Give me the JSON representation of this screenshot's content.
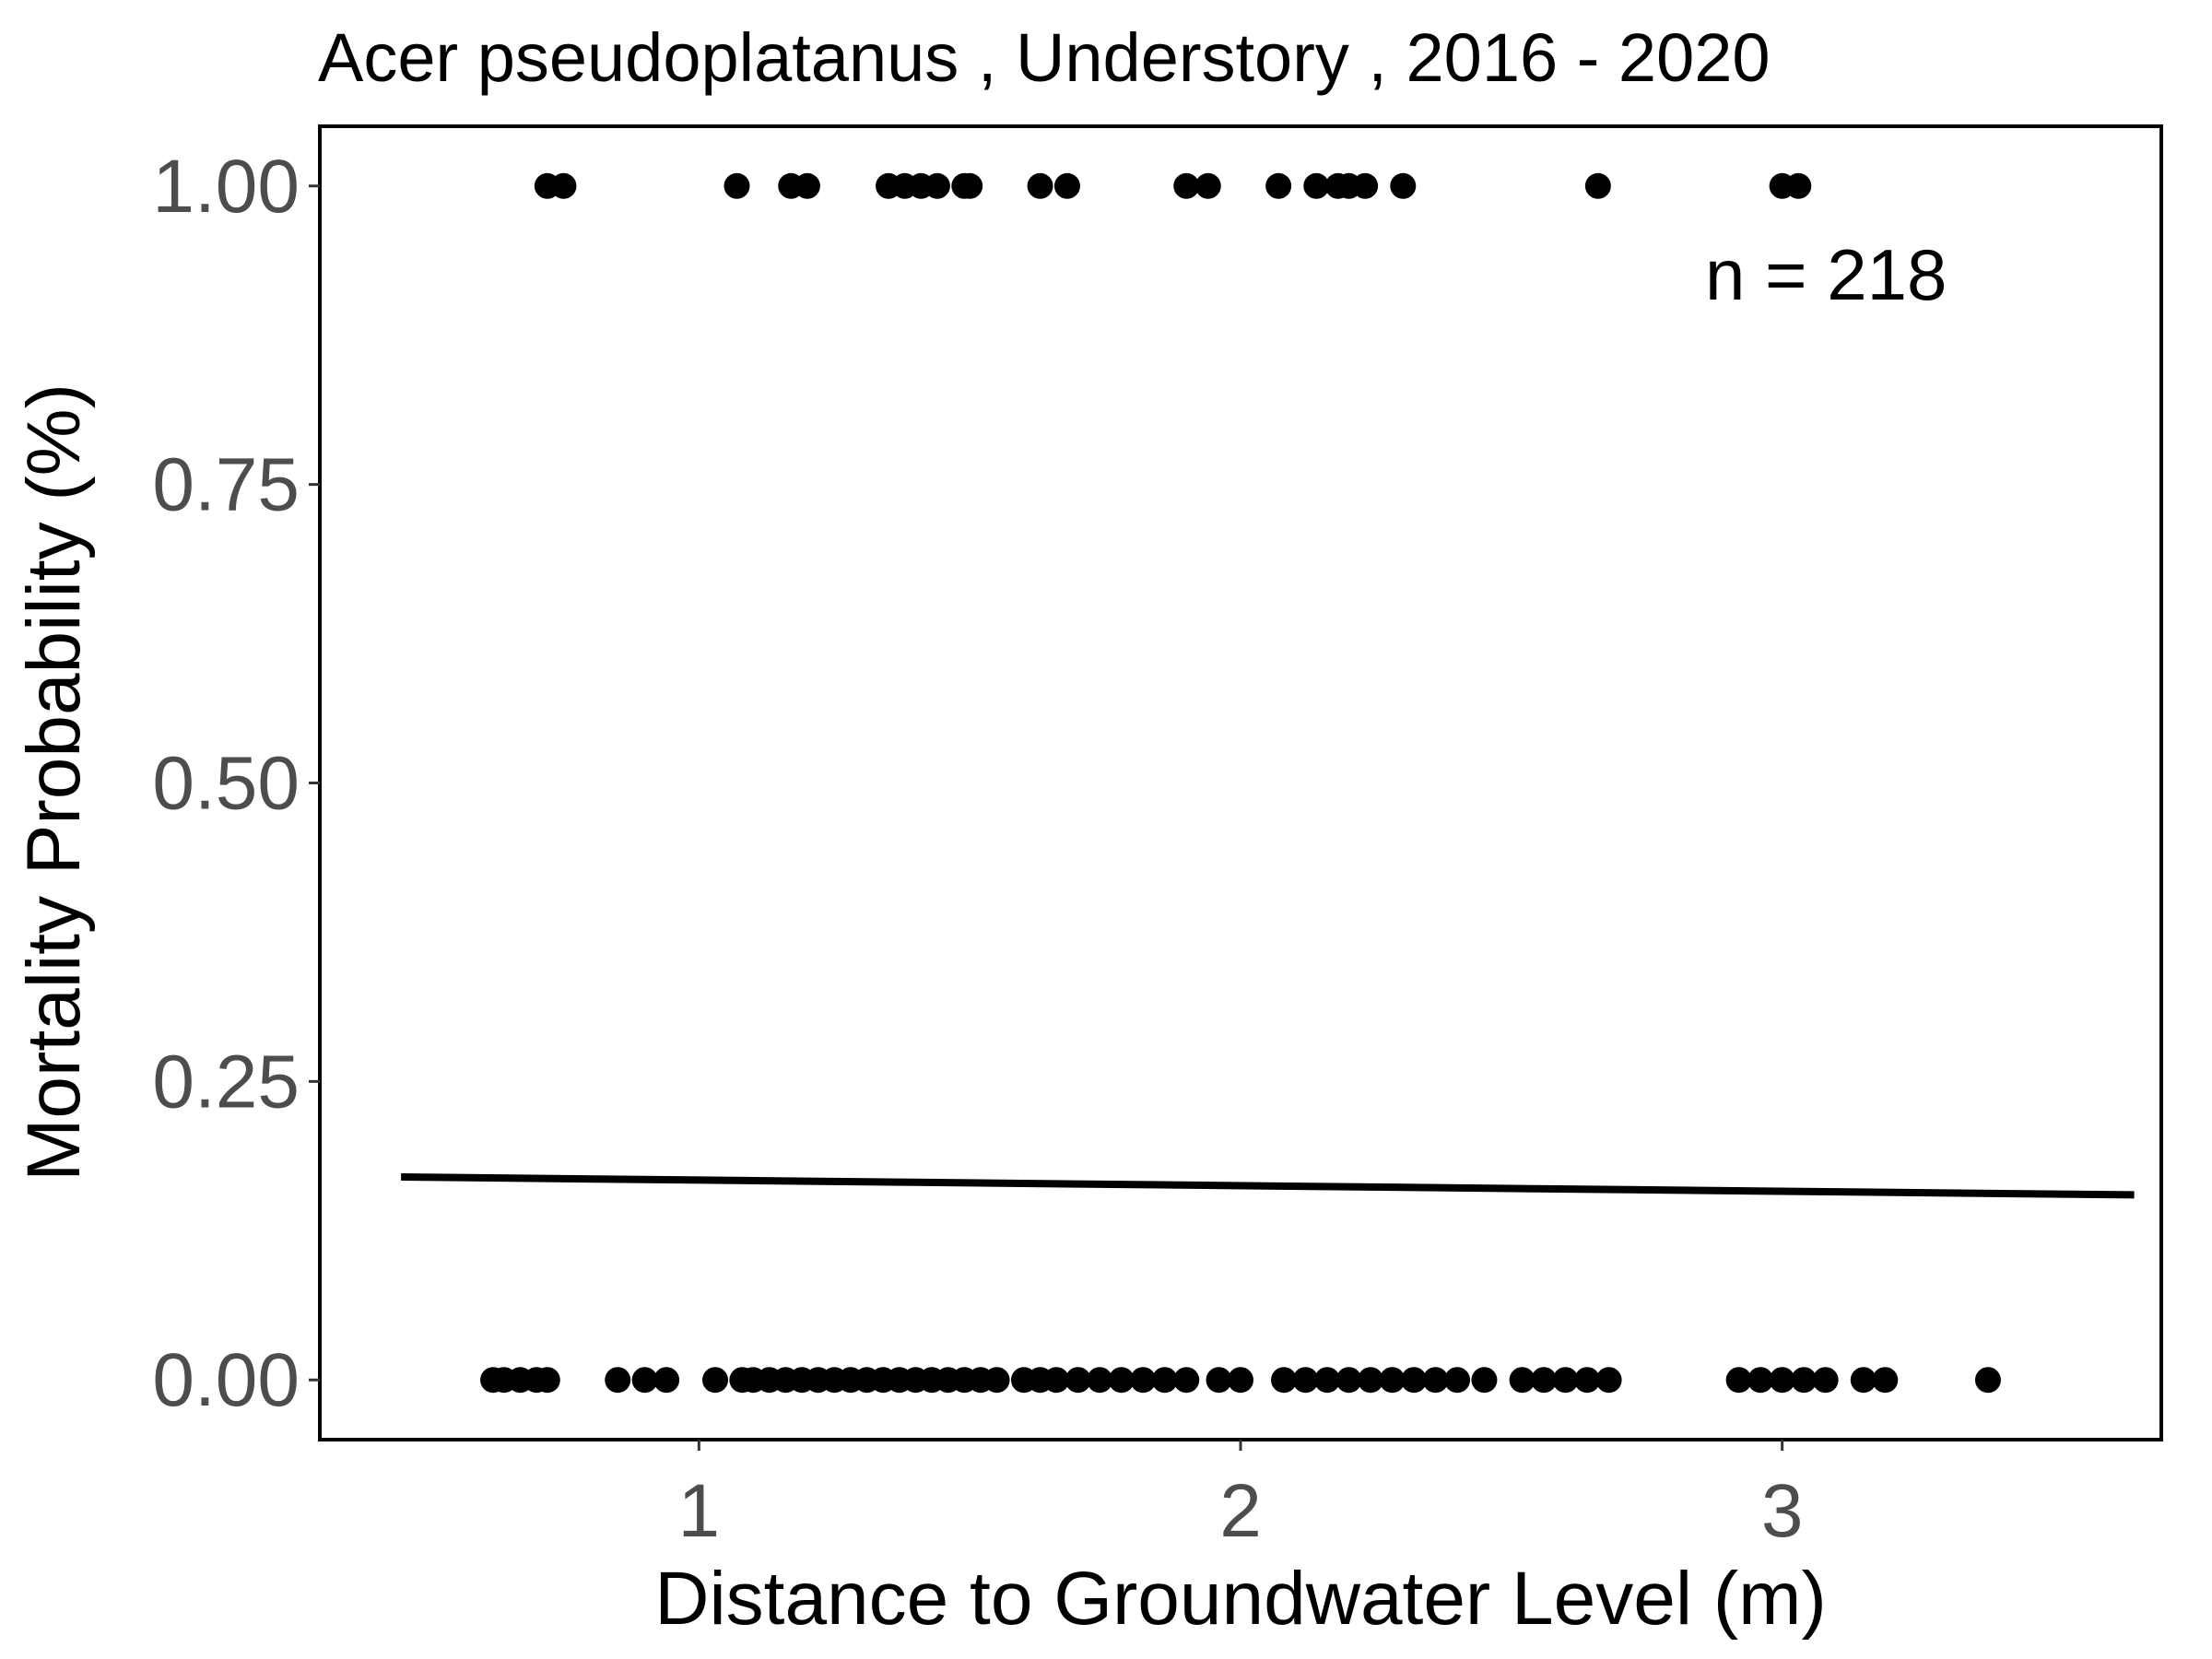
{
  "chart_data": {
    "type": "scatter",
    "title": "Acer pseudoplatanus , Understory , 2016 - 2020",
    "xlabel": "Distance to Groundwater Level (m)",
    "ylabel": "Mortality Probability (%)",
    "xlim": [
      0.3,
      3.7
    ],
    "ylim": [
      -0.05,
      1.05
    ],
    "x_ticks": [
      1,
      2,
      3
    ],
    "x_tick_labels": [
      "1",
      "2",
      "3"
    ],
    "y_ticks": [
      0,
      0.25,
      0.5,
      0.75,
      1.0
    ],
    "y_tick_labels": [
      "0.00",
      "0.25",
      "0.50",
      "0.75",
      "1.00"
    ],
    "grid": false,
    "annotation": "n =  218",
    "colors": {
      "points": "#000000",
      "line": "#000000",
      "tick_labels": "#4d4d4d"
    },
    "series": [
      {
        "type": "scatter",
        "points_y1_x": [
          0.72,
          0.75,
          1.07,
          1.17,
          1.2,
          1.35,
          1.38,
          1.41,
          1.44,
          1.49,
          1.5,
          1.63,
          1.68,
          1.9,
          1.94,
          2.07,
          2.14,
          2.18,
          2.2,
          2.23,
          2.3,
          2.66,
          3.0,
          3.03
        ],
        "points_y0_x": [
          0.62,
          0.64,
          0.67,
          0.7,
          0.72,
          0.85,
          0.9,
          0.94,
          1.03,
          1.08,
          1.1,
          1.13,
          1.16,
          1.19,
          1.22,
          1.25,
          1.28,
          1.31,
          1.34,
          1.37,
          1.4,
          1.43,
          1.46,
          1.49,
          1.52,
          1.55,
          1.6,
          1.63,
          1.66,
          1.7,
          1.74,
          1.78,
          1.82,
          1.86,
          1.9,
          1.96,
          2.0,
          2.08,
          2.12,
          2.16,
          2.2,
          2.24,
          2.28,
          2.32,
          2.36,
          2.4,
          2.45,
          2.52,
          2.56,
          2.6,
          2.64,
          2.68,
          2.92,
          2.96,
          3.0,
          3.04,
          3.08,
          3.15,
          3.19,
          3.38
        ]
      },
      {
        "type": "line",
        "x": [
          0.45,
          3.65
        ],
        "y": [
          0.17,
          0.155
        ]
      }
    ]
  }
}
